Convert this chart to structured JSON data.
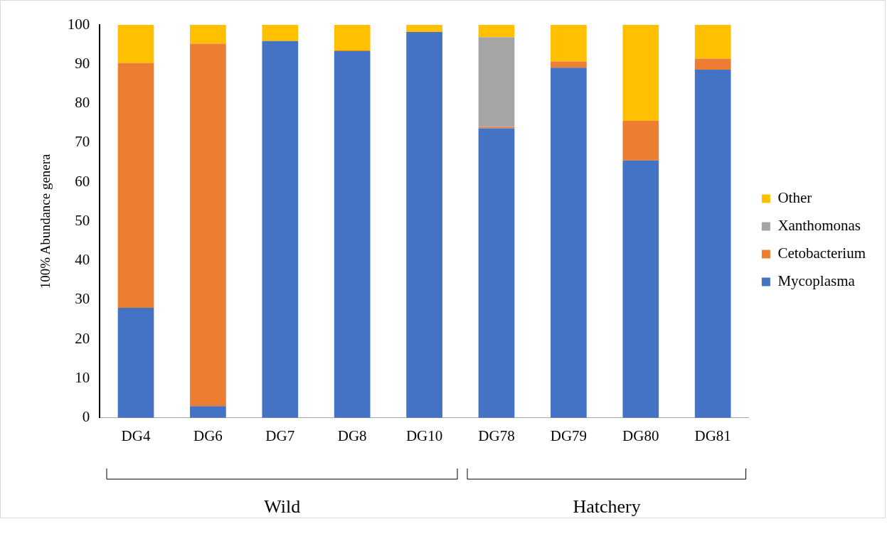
{
  "chart_data": {
    "type": "bar",
    "stacked": true,
    "ylabel": "100% Abundance genera",
    "categories": [
      "DG4",
      "DG6",
      "DG7",
      "DG8",
      "DG10",
      "DG78",
      "DG79",
      "DG80",
      "DG81"
    ],
    "series": [
      {
        "name": "Mycoplasma",
        "color": "#4472c4",
        "values": [
          28.0,
          3.0,
          95.9,
          93.3,
          98.2,
          73.7,
          89.1,
          65.5,
          88.6
        ]
      },
      {
        "name": "Cetobacterium",
        "color": "#ed7d31",
        "values": [
          62.3,
          92.2,
          0,
          0.2,
          0,
          0.3,
          1.6,
          10.1,
          2.8
        ]
      },
      {
        "name": "Xanthomonas",
        "color": "#a5a5a5",
        "values": [
          0,
          0,
          0,
          0,
          0,
          22.9,
          0,
          0,
          0
        ]
      },
      {
        "name": "Other",
        "color": "#ffc000",
        "values": [
          9.7,
          4.8,
          4.1,
          6.5,
          1.8,
          3.1,
          9.3,
          24.4,
          8.6
        ]
      }
    ],
    "ylim": [
      0,
      100
    ],
    "yticks": [
      0,
      10,
      20,
      30,
      40,
      50,
      60,
      70,
      80,
      90,
      100
    ],
    "grid": false,
    "legend": "right",
    "annotations": [
      "Wild",
      "Hatchery"
    ]
  }
}
